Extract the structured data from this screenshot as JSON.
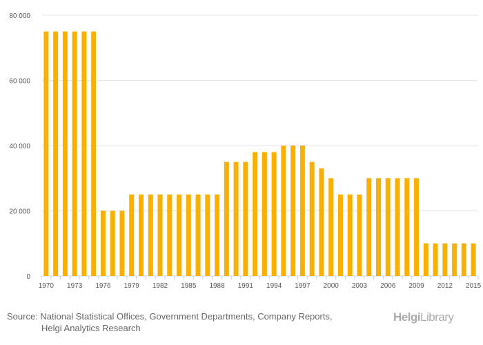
{
  "chart_data": {
    "type": "bar",
    "categories": [
      "1970",
      "1971",
      "1972",
      "1973",
      "1974",
      "1975",
      "1976",
      "1977",
      "1978",
      "1979",
      "1980",
      "1981",
      "1982",
      "1983",
      "1984",
      "1985",
      "1986",
      "1987",
      "1988",
      "1989",
      "1990",
      "1991",
      "1992",
      "1993",
      "1994",
      "1995",
      "1996",
      "1997",
      "1998",
      "1999",
      "2000",
      "2001",
      "2002",
      "2003",
      "2004",
      "2005",
      "2006",
      "2007",
      "2008",
      "2009",
      "2010",
      "2011",
      "2012",
      "2013",
      "2014",
      "2015"
    ],
    "values": [
      75000,
      75000,
      75000,
      75000,
      75000,
      75000,
      20000,
      20000,
      20000,
      25000,
      25000,
      25000,
      25000,
      25000,
      25000,
      25000,
      25000,
      25000,
      25000,
      35000,
      35000,
      35000,
      38000,
      38000,
      38000,
      40000,
      40000,
      40000,
      35000,
      33000,
      30000,
      25000,
      25000,
      25000,
      30000,
      30000,
      30000,
      30000,
      30000,
      30000,
      10000,
      10000,
      10000,
      10000,
      10000,
      10000
    ],
    "ylim": [
      0,
      80000
    ],
    "yticks": [
      0,
      20000,
      40000,
      60000,
      80000
    ],
    "ytick_labels": [
      "0",
      "20 000",
      "40 000",
      "60 000",
      "80 000"
    ],
    "xtick_labels": [
      "1970",
      "1973",
      "1976",
      "1979",
      "1982",
      "1985",
      "1988",
      "1991",
      "1994",
      "1997",
      "2000",
      "2003",
      "2006",
      "2009",
      "2012",
      "2015"
    ],
    "bar_color": "#F9B000",
    "grid": true,
    "title": "",
    "xlabel": "",
    "ylabel": ""
  },
  "source": {
    "line1": "Source: National Statistical Offices, Government Departments, Company Reports,",
    "line2": "Helgi Analytics Research"
  },
  "logo": {
    "text1": "Helgi",
    "text2": "Library"
  }
}
